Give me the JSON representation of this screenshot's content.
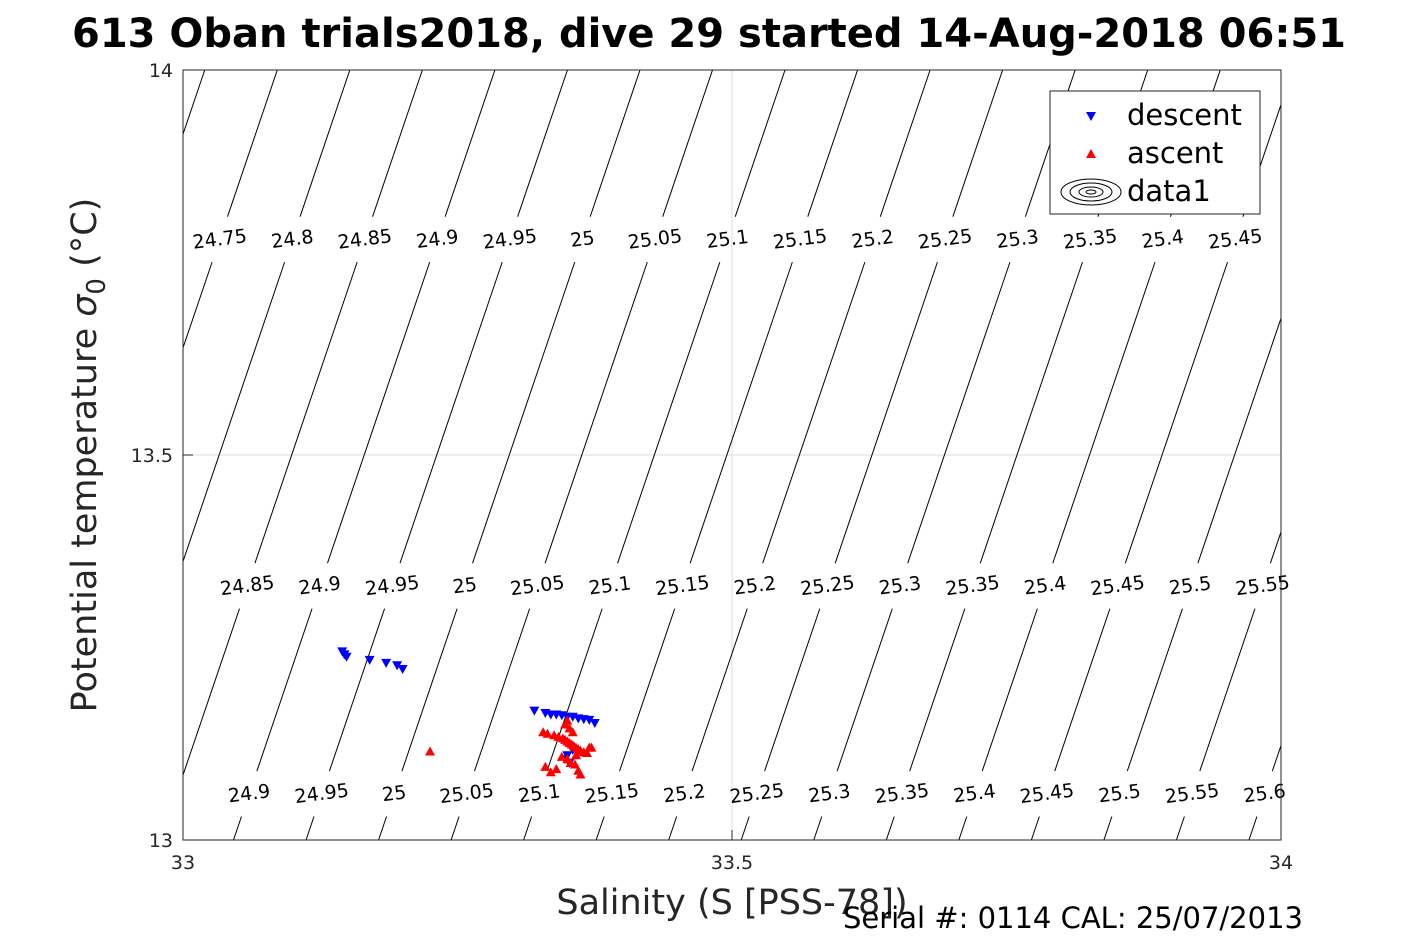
{
  "title": "613 Oban trials2018, dive 29 started 14-Aug-2018 06:51",
  "footer": "Serial #: 0114  CAL: 25/07/2013",
  "chart_data": {
    "type": "scatter",
    "xlabel": "Salinity (S [PSS-78])",
    "ylabel_main": "Potential temperature ",
    "ylabel_sigma": "σ",
    "ylabel_sub": "0",
    "ylabel_unit": " (°C)",
    "xlim": [
      33,
      34
    ],
    "ylim": [
      13,
      14
    ],
    "xticks": [
      "33",
      "33.5",
      "34"
    ],
    "yticks": [
      "13",
      "13.5",
      "14"
    ],
    "grid": true,
    "legend_position": "top-right",
    "legend": [
      "descent",
      "ascent",
      "data1"
    ],
    "contour_levels": [
      "24.7",
      "24.75",
      "24.8",
      "24.85",
      "24.9",
      "24.95",
      "25",
      "25.05",
      "25.1",
      "25.15",
      "25.2",
      "25.25",
      "25.3",
      "25.35",
      "25.4",
      "25.45",
      "25.5",
      "25.55",
      "25.6"
    ],
    "series": [
      {
        "name": "descent",
        "marker": "triangle-down",
        "color": "#0000ff",
        "x": [
          33.145,
          33.147,
          33.149,
          33.17,
          33.185,
          33.195,
          33.2,
          33.32,
          33.33,
          33.335,
          33.34,
          33.345,
          33.35,
          33.355,
          33.36,
          33.365,
          33.37,
          33.375,
          33.355,
          33.35,
          33.348,
          33.352
        ],
        "y": [
          13.245,
          13.241,
          13.238,
          13.234,
          13.23,
          13.227,
          13.222,
          13.168,
          13.165,
          13.163,
          13.163,
          13.162,
          13.16,
          13.16,
          13.158,
          13.157,
          13.156,
          13.152,
          13.117,
          13.11,
          13.105,
          13.1
        ]
      },
      {
        "name": "ascent",
        "marker": "triangle-up",
        "color": "#ff0000",
        "x": [
          33.225,
          33.328,
          33.332,
          33.338,
          33.342,
          33.346,
          33.348,
          33.35,
          33.352,
          33.354,
          33.356,
          33.358,
          33.36,
          33.362,
          33.365,
          33.368,
          33.372,
          33.35,
          33.348,
          33.352,
          33.355,
          33.345,
          33.35,
          33.353,
          33.357,
          33.34,
          33.335,
          33.33,
          33.358,
          33.36,
          33.362,
          33.37
        ],
        "y": [
          13.115,
          13.14,
          13.138,
          13.136,
          13.134,
          13.132,
          13.13,
          13.128,
          13.126,
          13.124,
          13.122,
          13.12,
          13.118,
          13.116,
          13.114,
          13.113,
          13.12,
          13.155,
          13.15,
          13.145,
          13.14,
          13.108,
          13.105,
          13.1,
          13.098,
          13.092,
          13.088,
          13.095,
          13.11,
          13.09,
          13.085,
          13.12
        ]
      }
    ]
  }
}
